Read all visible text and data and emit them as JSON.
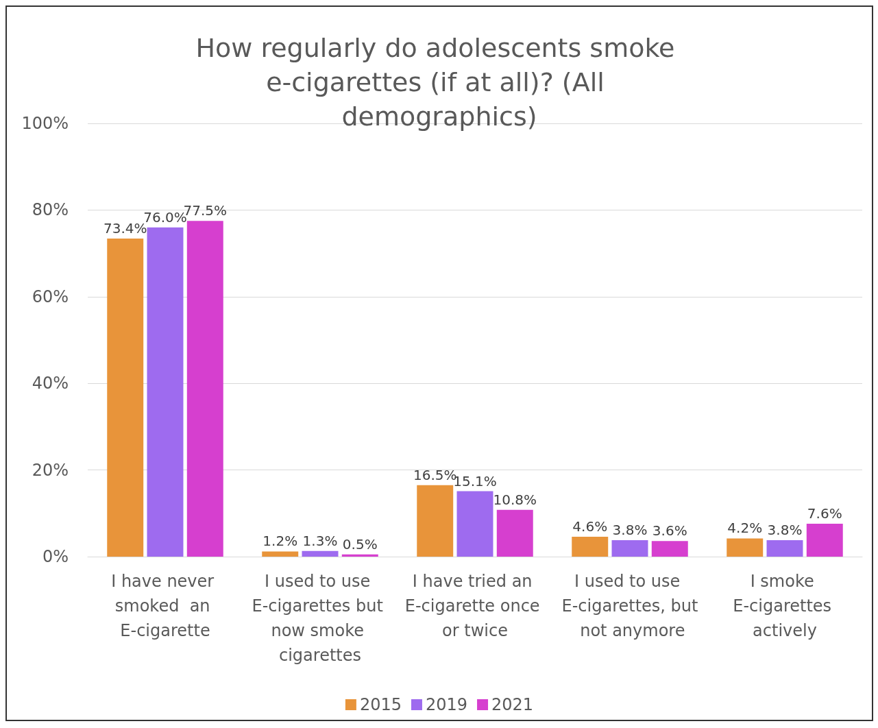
{
  "chart_data": {
    "type": "bar",
    "title": "How regularly do adolescents smoke e-cigarettes (if at all)? (All demographics)",
    "categories": [
      "I have never smoked  an E-cigarette",
      "I used to use E-cigarettes but now smoke cigarettes",
      "I have tried an E-cigarette once or twice",
      "I used to use E-cigarettes, but not anymore",
      "I smoke E-cigarettes actively"
    ],
    "series": [
      {
        "name": "2015",
        "color": "#e8943a",
        "values": [
          73.4,
          1.2,
          16.5,
          4.6,
          4.2
        ],
        "value_labels": [
          "73.4%",
          "1.2%",
          "16.5%",
          "4.6%",
          "4.2%"
        ]
      },
      {
        "name": "2019",
        "color": "#9e6bef",
        "values": [
          76.0,
          1.3,
          15.1,
          3.8,
          3.8
        ],
        "value_labels": [
          "76.0%",
          "1.3%",
          "15.1%",
          "3.8%",
          "3.8%"
        ]
      },
      {
        "name": "2021",
        "color": "#d63fcf",
        "values": [
          77.5,
          0.5,
          10.8,
          3.6,
          7.6
        ],
        "value_labels": [
          "77.5%",
          "0.5%",
          "10.8%",
          "3.6%",
          "7.6%"
        ]
      }
    ],
    "ylim": [
      0,
      100
    ],
    "yticks": [
      {
        "value": 0,
        "label": "0%"
      },
      {
        "value": 20,
        "label": "20%"
      },
      {
        "value": 40,
        "label": "40%"
      },
      {
        "value": 60,
        "label": "60%"
      },
      {
        "value": 80,
        "label": "80%"
      },
      {
        "value": 100,
        "label": "100%"
      }
    ],
    "grid": "y",
    "legend": "bottom"
  }
}
